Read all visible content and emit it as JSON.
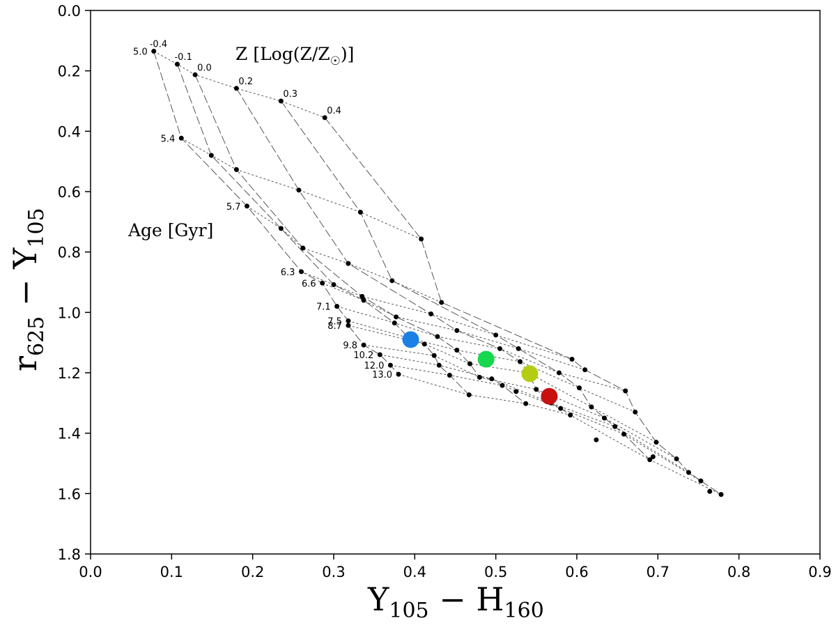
{
  "chart_data": {
    "type": "scatter",
    "title": "",
    "xlabel_main": "Y",
    "xlabel_sub1": "105",
    "xlabel_mid": " − H",
    "xlabel_sub2": "160",
    "ylabel_main": "r",
    "ylabel_sub1": "625",
    "ylabel_mid": " − Y",
    "ylabel_sub2": "105",
    "xlim": [
      0.0,
      0.9
    ],
    "ylim": [
      0.0,
      1.8
    ],
    "y_inverted": true,
    "xticks": [
      "0.0",
      "0.1",
      "0.2",
      "0.3",
      "0.4",
      "0.5",
      "0.6",
      "0.7",
      "0.8",
      "0.9"
    ],
    "yticks": [
      "0.0",
      "0.2",
      "0.4",
      "0.6",
      "0.8",
      "1.0",
      "1.2",
      "1.4",
      "1.6",
      "1.8"
    ],
    "grid": false,
    "annotation_metallicity": "Z [Log(Z/Z",
    "annotation_metallicity_close": ")]",
    "annotation_age": "Age [Gyr]",
    "metallicities": [
      "-0.4",
      "-0.1",
      "0.0",
      "0.2",
      "0.3",
      "0.4"
    ],
    "ages": [
      "5.0",
      "5.4",
      "5.7",
      "6.3",
      "6.6",
      "7.1",
      "7.5",
      "8.7",
      "9.8",
      "10.2",
      "12.0",
      "13.0"
    ],
    "grid_points": [
      [
        [
          0.078,
          0.135
        ],
        [
          0.107,
          0.178
        ],
        [
          0.129,
          0.213
        ],
        [
          0.18,
          0.258
        ],
        [
          0.235,
          0.3
        ],
        [
          0.289,
          0.355
        ]
      ],
      [
        [
          0.112,
          0.423
        ],
        [
          0.149,
          0.48
        ],
        [
          0.18,
          0.527
        ],
        [
          0.257,
          0.595
        ],
        [
          0.333,
          0.668
        ],
        [
          0.408,
          0.757
        ]
      ],
      [
        [
          0.193,
          0.648
        ],
        [
          0.235,
          0.722
        ],
        [
          0.262,
          0.787
        ],
        [
          0.318,
          0.838
        ],
        [
          0.372,
          0.895
        ],
        [
          0.433,
          0.967
        ]
      ],
      [
        [
          0.26,
          0.865
        ],
        [
          0.3,
          0.908
        ],
        [
          0.335,
          0.947
        ],
        [
          0.42,
          1.005
        ],
        [
          0.5,
          1.075
        ],
        [
          0.594,
          1.155
        ]
      ],
      [
        [
          0.286,
          0.903
        ],
        [
          0.337,
          0.96
        ],
        [
          0.377,
          1.015
        ],
        [
          0.452,
          1.06
        ],
        [
          0.528,
          1.12
        ],
        [
          0.61,
          1.19
        ]
      ],
      [
        [
          0.304,
          0.98
        ],
        [
          0.375,
          1.035
        ],
        [
          0.428,
          1.08
        ],
        [
          0.505,
          1.12
        ],
        [
          0.578,
          1.2
        ],
        [
          0.66,
          1.26
        ]
      ],
      [
        [
          0.318,
          1.028
        ],
        [
          0.393,
          1.085
        ],
        [
          0.452,
          1.125
        ],
        [
          0.53,
          1.163
        ],
        [
          0.603,
          1.25
        ],
        [
          0.672,
          1.33
        ]
      ],
      [
        [
          0.318,
          1.043
        ],
        [
          0.412,
          1.105
        ],
        [
          0.468,
          1.17
        ],
        [
          0.54,
          1.2
        ],
        [
          0.618,
          1.313
        ],
        [
          0.698,
          1.43
        ]
      ],
      [
        [
          0.337,
          1.108
        ],
        [
          0.424,
          1.143
        ],
        [
          0.48,
          1.215
        ],
        [
          0.55,
          1.255
        ],
        [
          0.634,
          1.35
        ],
        [
          0.723,
          1.485
        ]
      ],
      [
        [
          0.357,
          1.14
        ],
        [
          0.43,
          1.175
        ],
        [
          0.495,
          1.22
        ],
        [
          0.568,
          1.3
        ],
        [
          0.647,
          1.378
        ],
        [
          0.738,
          1.53
        ]
      ],
      [
        [
          0.37,
          1.175
        ],
        [
          0.443,
          1.208
        ],
        [
          0.508,
          1.242
        ],
        [
          0.58,
          1.318
        ],
        [
          0.658,
          1.403
        ],
        [
          0.753,
          1.558
        ]
      ],
      [
        [
          0.38,
          1.205
        ],
        [
          0.467,
          1.273
        ],
        [
          0.537,
          1.302
        ],
        [
          0.592,
          1.34
        ],
        [
          0.69,
          1.488
        ],
        [
          0.778,
          1.603
        ]
      ]
    ],
    "extra_points": [
      [
        0.525,
        1.262
      ],
      [
        0.624,
        1.422
      ],
      [
        0.694,
        1.478
      ],
      [
        0.764,
        1.593
      ]
    ],
    "highlight_points": [
      {
        "x": 0.395,
        "y": 1.09,
        "color": "#1a80e6"
      },
      {
        "x": 0.488,
        "y": 1.155,
        "color": "#16d84c"
      },
      {
        "x": 0.542,
        "y": 1.203,
        "color": "#b5cc14"
      },
      {
        "x": 0.566,
        "y": 1.278,
        "color": "#c8100f"
      }
    ]
  }
}
